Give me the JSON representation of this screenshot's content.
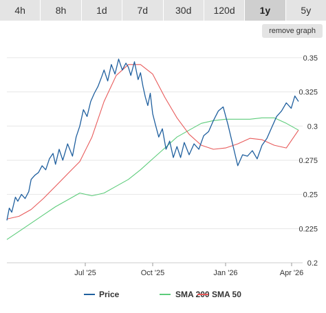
{
  "tabs": [
    {
      "label": "4h",
      "active": false
    },
    {
      "label": "8h",
      "active": false
    },
    {
      "label": "1d",
      "active": false
    },
    {
      "label": "7d",
      "active": false
    },
    {
      "label": "30d",
      "active": false
    },
    {
      "label": "120d",
      "active": false
    },
    {
      "label": "1y",
      "active": true
    },
    {
      "label": "5y",
      "active": false
    }
  ],
  "remove_graph_label": "remove graph",
  "chart_data": {
    "type": "line",
    "x_ticks": [
      "Jul '25",
      "Oct '25",
      "Jan '26",
      "Apr '26"
    ],
    "y_ticks": [
      "0.35",
      "0.325",
      "0.3",
      "0.275",
      "0.25",
      "0.225",
      "0.2"
    ],
    "ylim": [
      0.2,
      0.36
    ],
    "x_range_months": [
      0,
      12
    ],
    "grid": "horizontal",
    "legend": "bottom",
    "colors": {
      "price": "#1f5f9e",
      "sma200": "#5ccc7a",
      "sma50": "#e85a5a"
    },
    "series": [
      {
        "name": "Price",
        "x": [
          0.0,
          0.1,
          0.2,
          0.35,
          0.45,
          0.6,
          0.75,
          0.9,
          1.0,
          1.15,
          1.3,
          1.45,
          1.6,
          1.75,
          1.9,
          2.0,
          2.15,
          2.3,
          2.5,
          2.7,
          2.85,
          3.0,
          3.15,
          3.3,
          3.45,
          3.6,
          3.75,
          3.9,
          4.0,
          4.15,
          4.3,
          4.45,
          4.6,
          4.75,
          4.9,
          5.0,
          5.1,
          5.25,
          5.4,
          5.5,
          5.6,
          5.7,
          5.8,
          5.9,
          6.0,
          6.1,
          6.25,
          6.4,
          6.55,
          6.7,
          6.85,
          7.0,
          7.15,
          7.3,
          7.5,
          7.7,
          7.9,
          8.1,
          8.3,
          8.5,
          8.7,
          8.9,
          9.1,
          9.3,
          9.5,
          9.7,
          9.9,
          10.1,
          10.3,
          10.5,
          10.7,
          10.9,
          11.1,
          11.3,
          11.5,
          11.7,
          11.85,
          12.0
        ],
        "values": [
          0.231,
          0.24,
          0.237,
          0.248,
          0.245,
          0.25,
          0.247,
          0.252,
          0.261,
          0.264,
          0.266,
          0.271,
          0.268,
          0.276,
          0.28,
          0.272,
          0.283,
          0.275,
          0.287,
          0.278,
          0.292,
          0.3,
          0.312,
          0.307,
          0.318,
          0.324,
          0.329,
          0.336,
          0.341,
          0.333,
          0.345,
          0.338,
          0.349,
          0.341,
          0.346,
          0.343,
          0.337,
          0.347,
          0.334,
          0.339,
          0.329,
          0.321,
          0.315,
          0.324,
          0.309,
          0.302,
          0.292,
          0.298,
          0.283,
          0.289,
          0.277,
          0.285,
          0.277,
          0.288,
          0.279,
          0.287,
          0.283,
          0.293,
          0.296,
          0.304,
          0.311,
          0.314,
          0.301,
          0.286,
          0.271,
          0.279,
          0.278,
          0.282,
          0.276,
          0.286,
          0.291,
          0.299,
          0.307,
          0.311,
          0.317,
          0.313,
          0.322,
          0.318
        ]
      },
      {
        "name": "SMA 200",
        "x": [
          0,
          0.5,
          1,
          1.5,
          2,
          2.5,
          3,
          3.5,
          4,
          4.5,
          5,
          5.5,
          6,
          6.5,
          7,
          7.5,
          8,
          8.5,
          9,
          9.5,
          10,
          10.5,
          11,
          11.5,
          12
        ],
        "values": [
          0.217,
          0.223,
          0.229,
          0.235,
          0.241,
          0.246,
          0.251,
          0.249,
          0.251,
          0.256,
          0.261,
          0.268,
          0.276,
          0.284,
          0.292,
          0.297,
          0.302,
          0.304,
          0.305,
          0.305,
          0.305,
          0.306,
          0.306,
          0.302,
          0.297
        ]
      },
      {
        "name": "SMA 50",
        "x": [
          0,
          0.5,
          1,
          1.5,
          2,
          2.5,
          3,
          3.5,
          4,
          4.5,
          5,
          5.5,
          6,
          6.5,
          7,
          7.5,
          8,
          8.5,
          9,
          9.5,
          10,
          10.5,
          11,
          11.5,
          12
        ],
        "values": [
          0.232,
          0.234,
          0.239,
          0.247,
          0.256,
          0.265,
          0.274,
          0.292,
          0.318,
          0.337,
          0.345,
          0.345,
          0.338,
          0.321,
          0.306,
          0.294,
          0.286,
          0.283,
          0.284,
          0.287,
          0.291,
          0.29,
          0.286,
          0.284,
          0.297
        ]
      }
    ]
  }
}
